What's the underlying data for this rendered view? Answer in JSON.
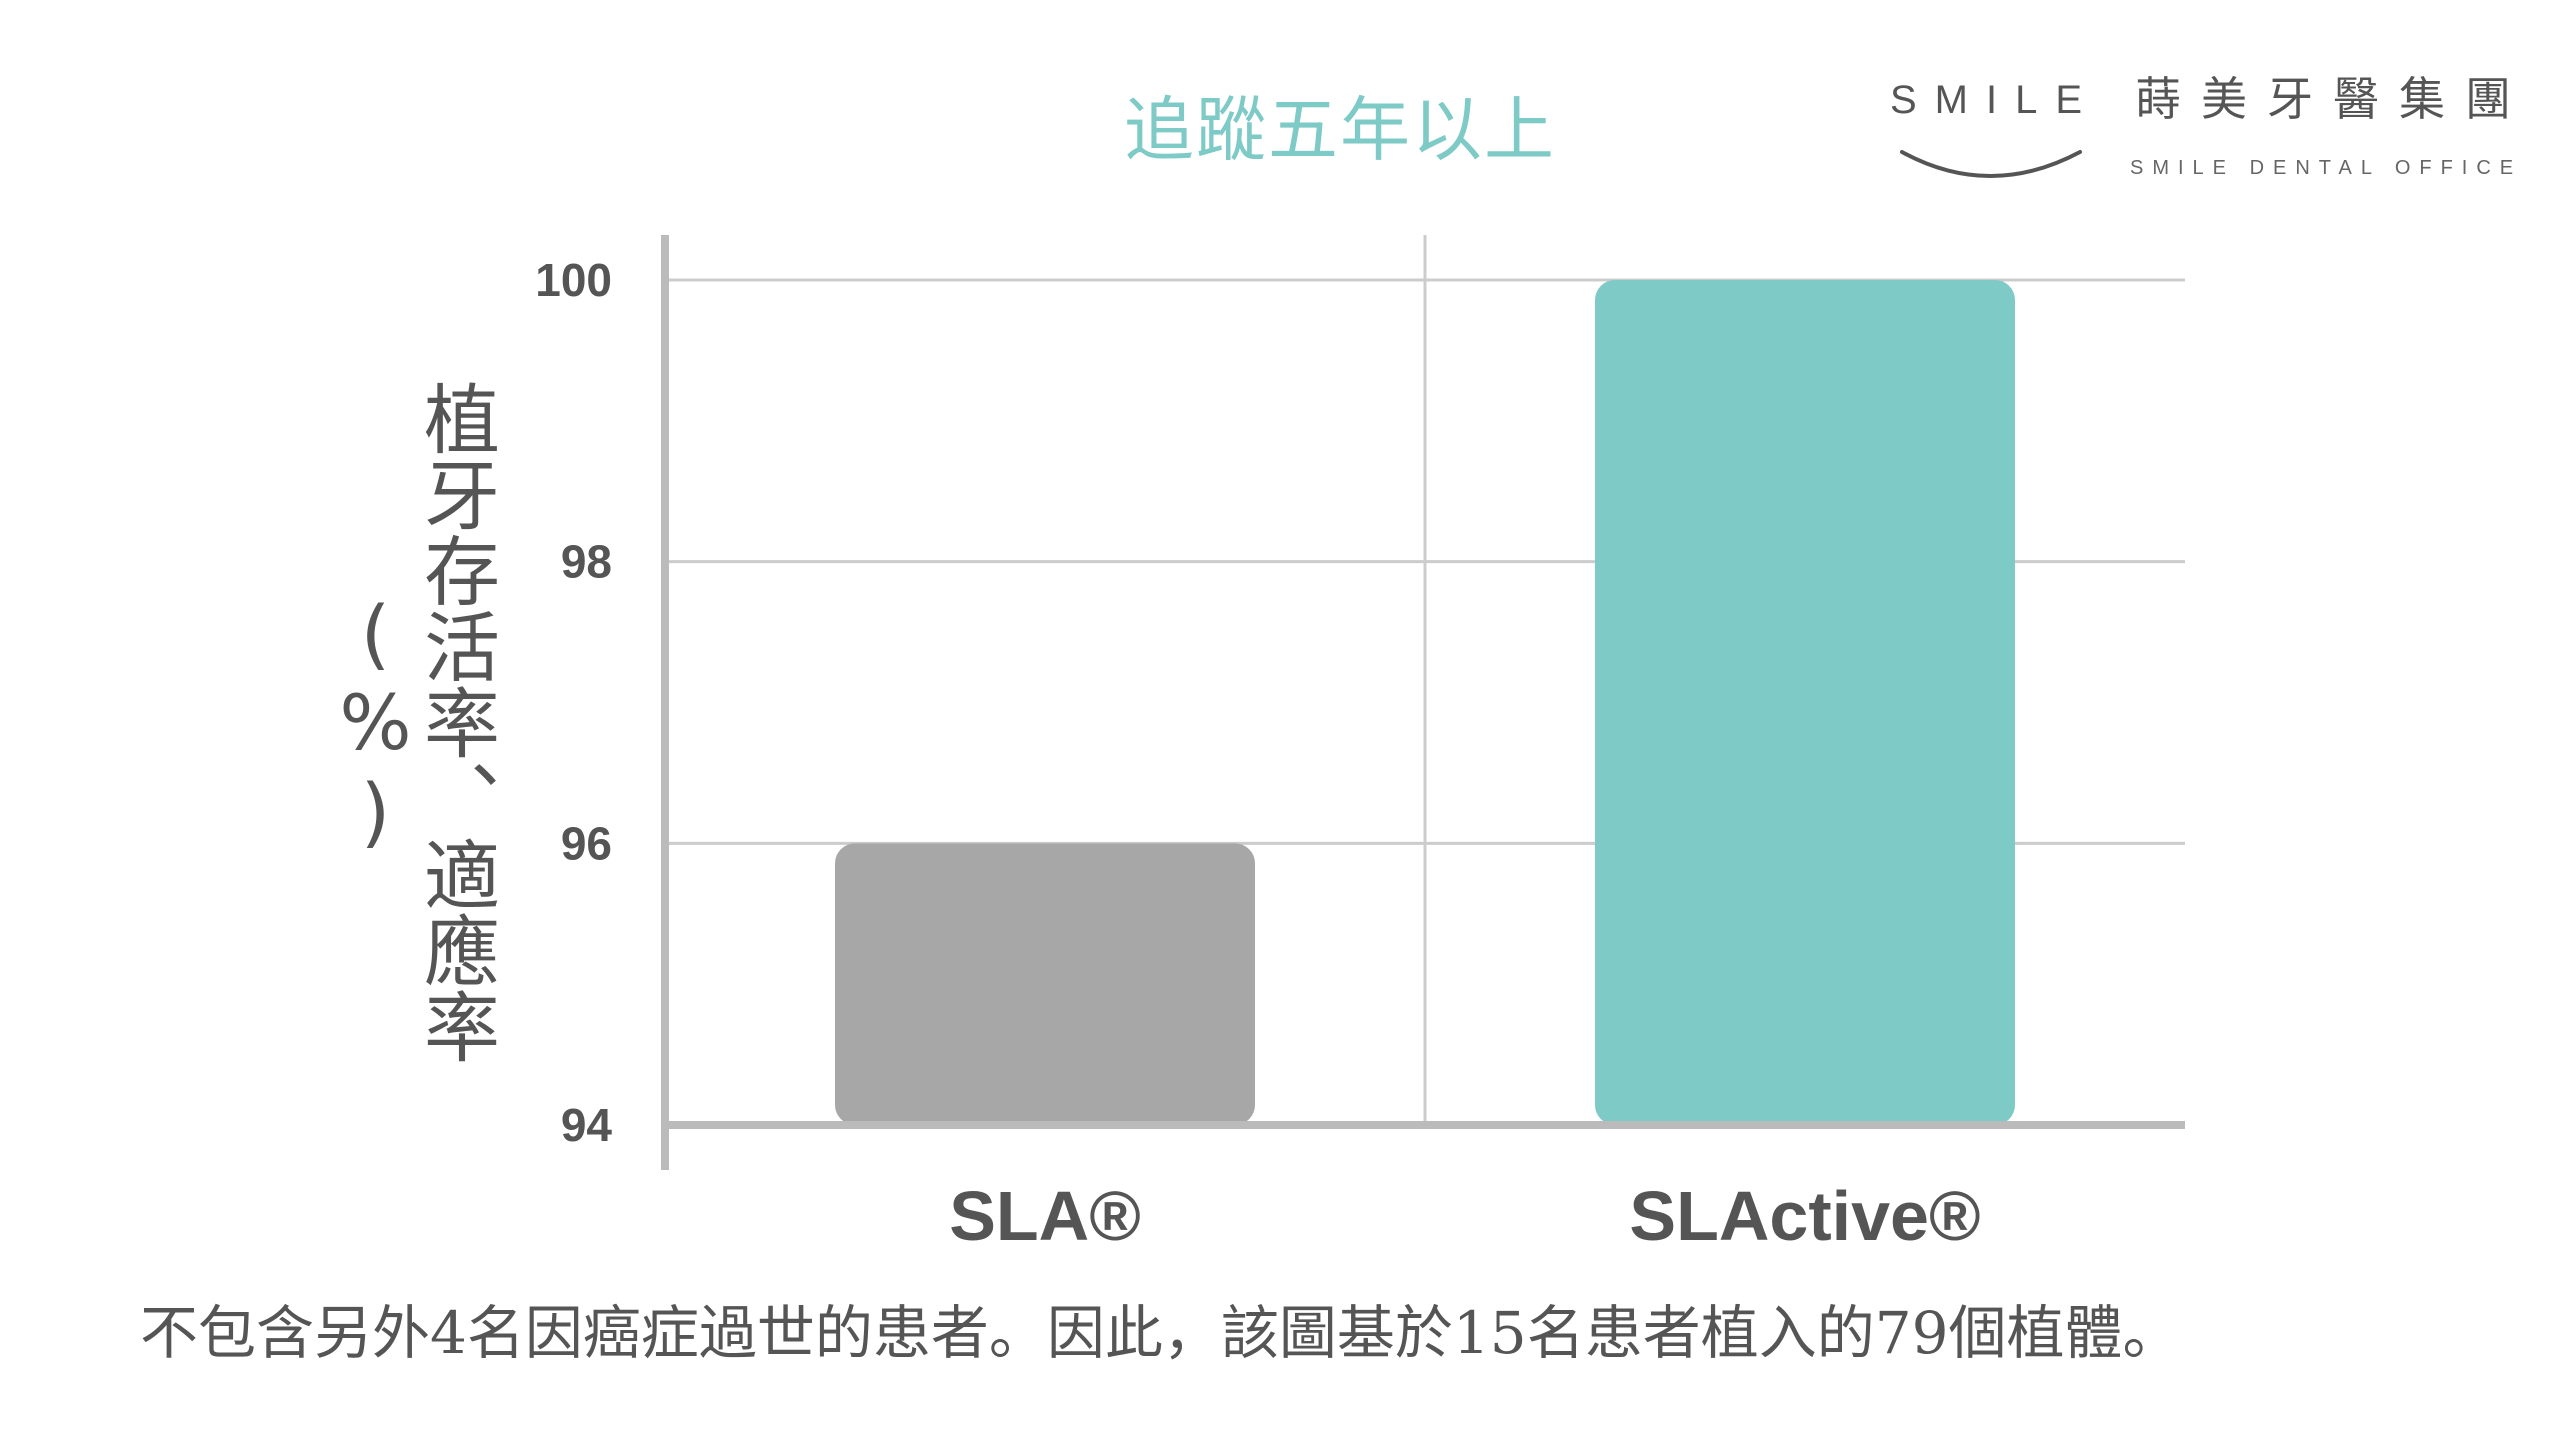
{
  "logo": {
    "brand_text": "SMILE",
    "brand_cn": "蒔美牙醫集團",
    "brand_sub": "SMILE DENTAL OFFICE"
  },
  "colors": {
    "teal": "#7ecac6",
    "gray_bar": "#a7a7a7",
    "axis": "#bbbbbb",
    "grid": "#cccccc",
    "text": "#555555"
  },
  "footnote": "不包含另外4名因癌症過世的患者。因此，該圖基於15名患者植入的79個植體。",
  "chart_data": {
    "type": "bar",
    "title": "追蹤五年以上",
    "ylabel": "植牙存活率、適應率(%)",
    "xlabel": "",
    "categories": [
      "SLA®",
      "SLActive®"
    ],
    "values": [
      96,
      100
    ],
    "bar_colors": [
      "#a7a7a7",
      "#7ecac6"
    ],
    "ylim": [
      94,
      100
    ],
    "yticks": [
      94,
      96,
      98,
      100
    ],
    "grid": true
  }
}
